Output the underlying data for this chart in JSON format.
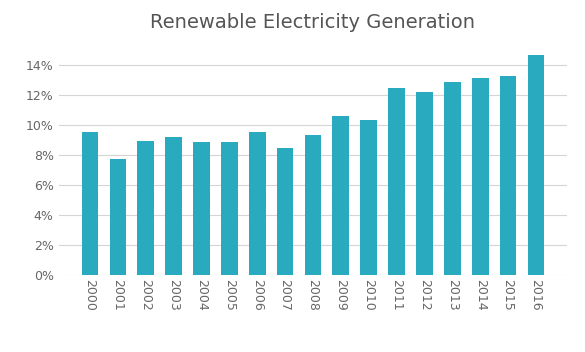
{
  "title": "Renewable Electricity Generation",
  "years": [
    2000,
    2001,
    2002,
    2003,
    2004,
    2005,
    2006,
    2007,
    2008,
    2009,
    2010,
    2011,
    2012,
    2013,
    2014,
    2015,
    2016
  ],
  "values": [
    0.0948,
    0.0773,
    0.0888,
    0.0918,
    0.0885,
    0.0882,
    0.0953,
    0.0845,
    0.0928,
    0.1055,
    0.1033,
    0.1248,
    0.1215,
    0.1283,
    0.131,
    0.1328,
    0.1465
  ],
  "bar_color": "#2aaabf",
  "background_color": "#ffffff",
  "ylim": [
    0,
    0.155
  ],
  "yticks": [
    0,
    0.02,
    0.04,
    0.06,
    0.08,
    0.1,
    0.12,
    0.14
  ],
  "title_fontsize": 14,
  "tick_fontsize": 9,
  "grid_color": "#d5d5d5",
  "bar_width": 0.6
}
